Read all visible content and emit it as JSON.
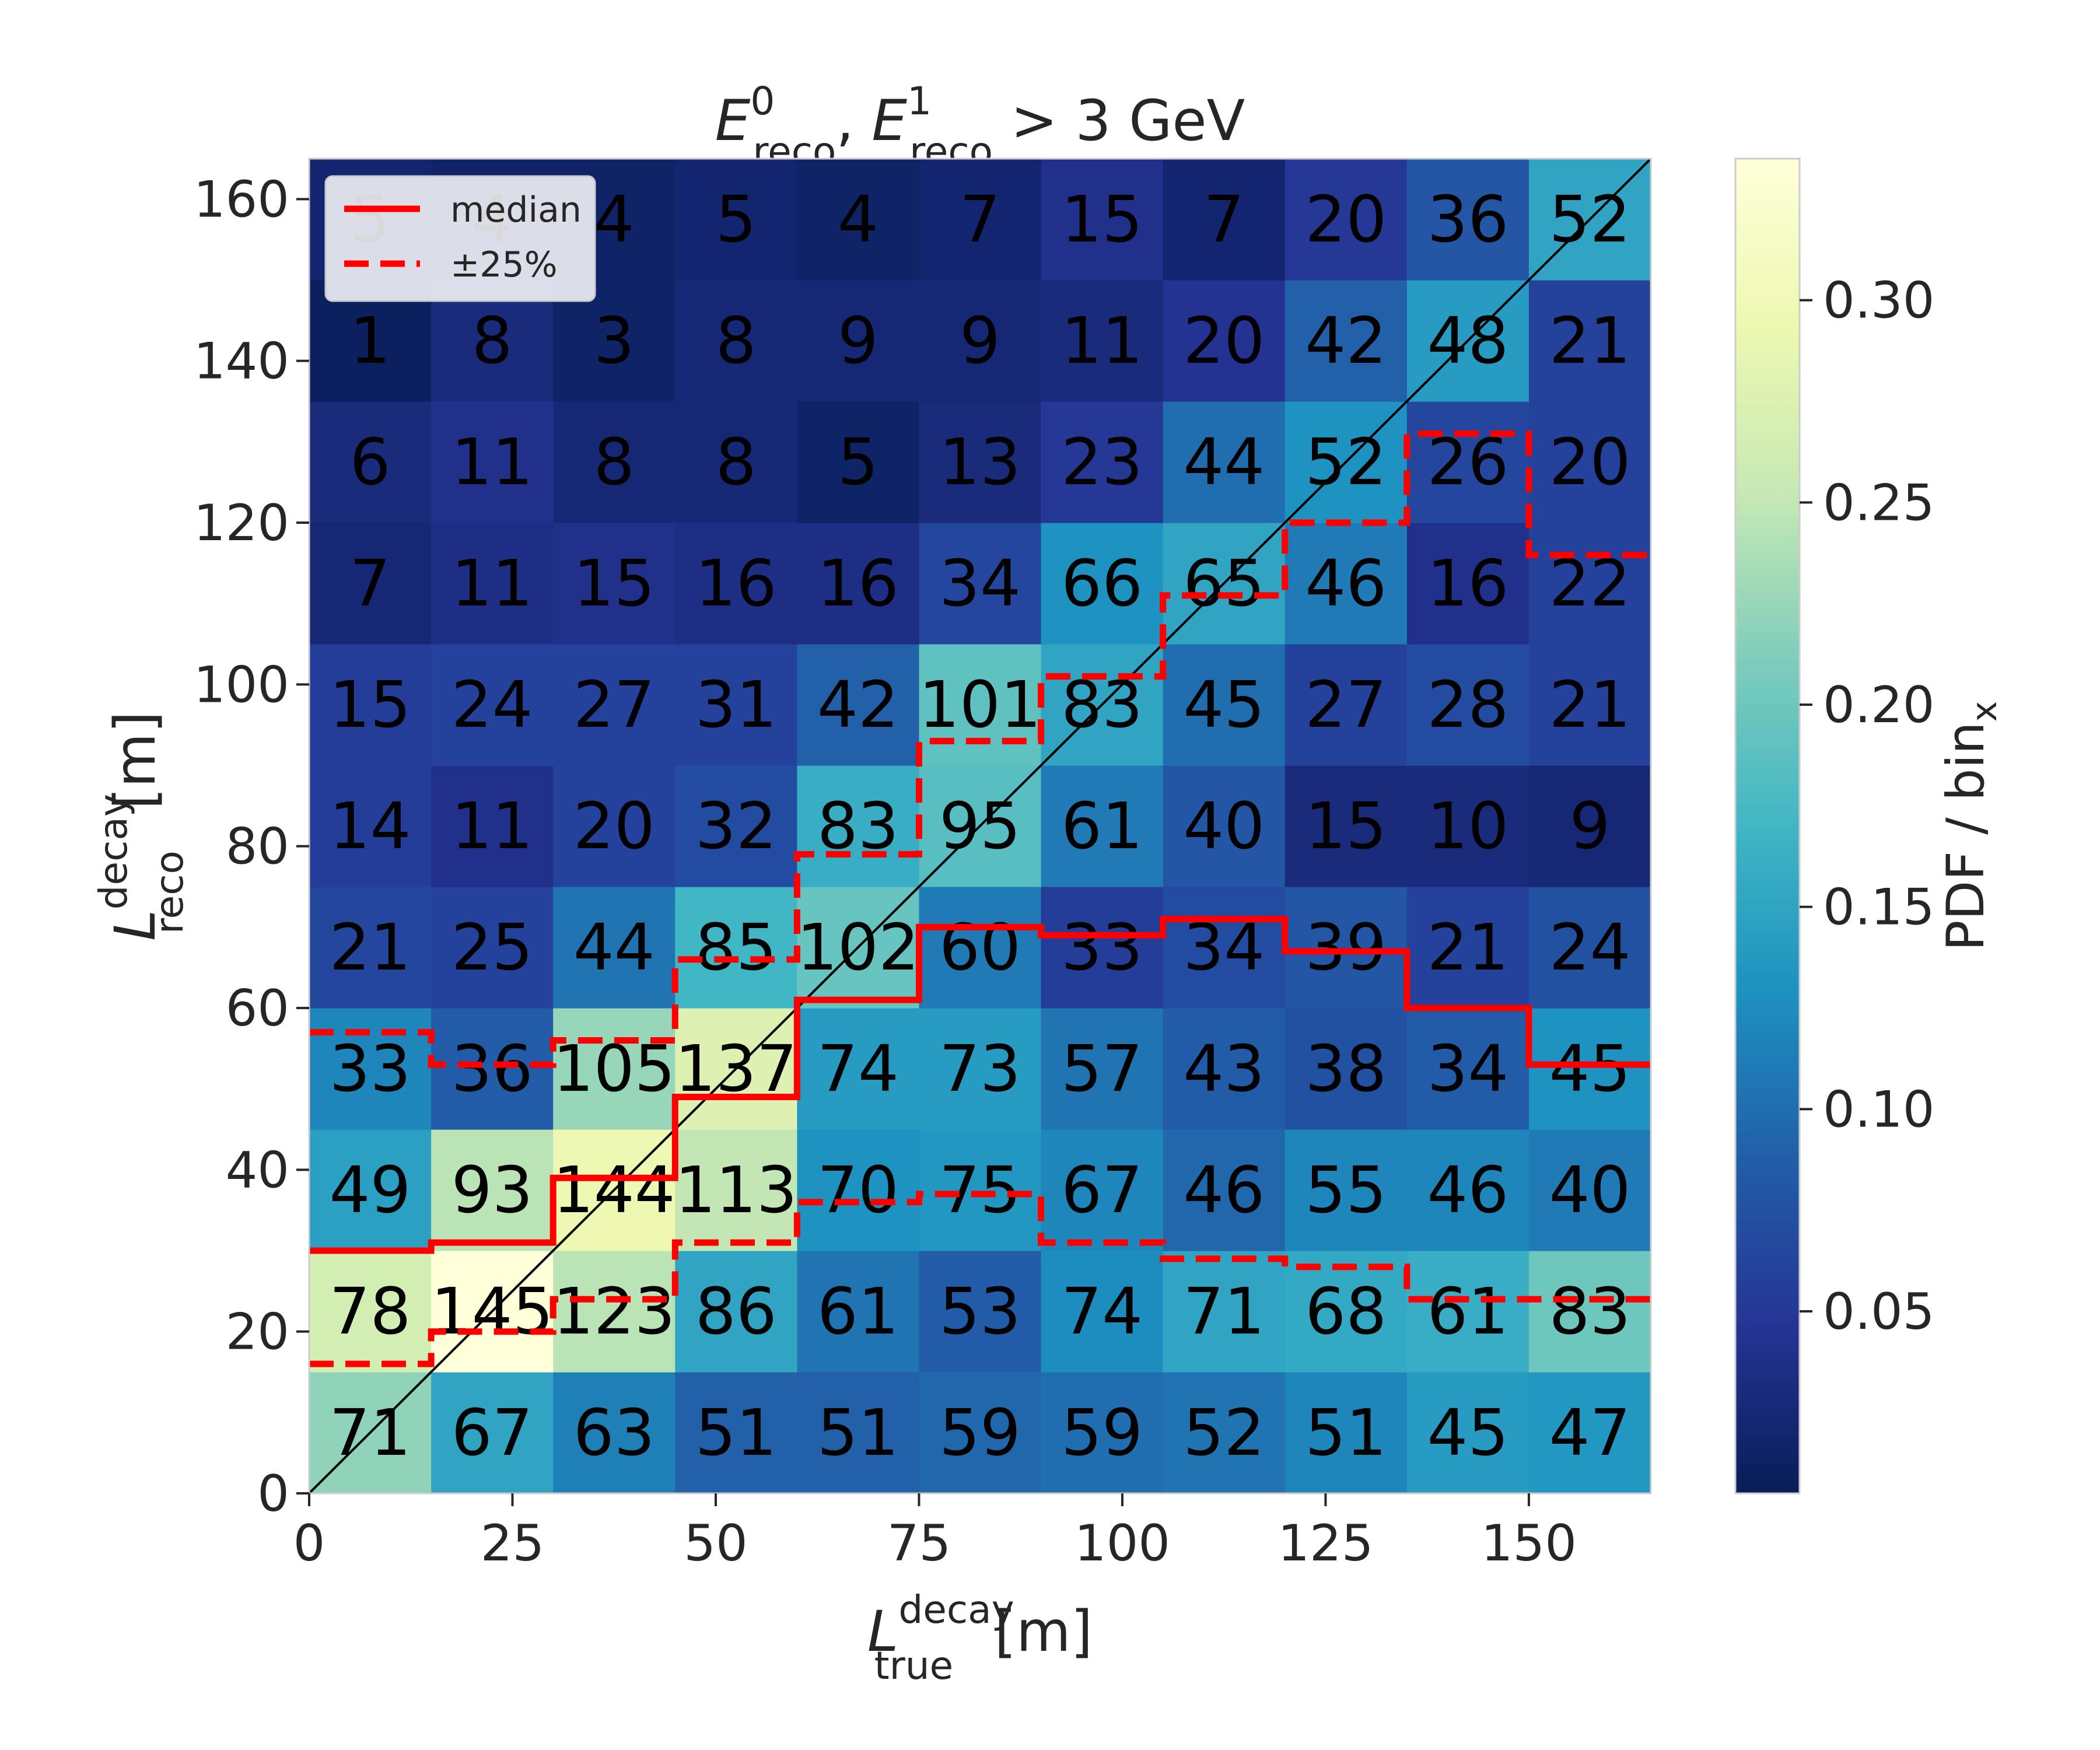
{
  "chart_data": {
    "type": "heatmap",
    "title": {
      "base1": "E",
      "sup1": "0",
      "sub1": "reco",
      "sep": ", ",
      "base2": "E",
      "sup2": "1",
      "sub2": "reco",
      "cond": " > 3 GeV"
    },
    "xlabel": {
      "base": "L",
      "sup": "decay",
      "sub": "true",
      "unit": " [m]"
    },
    "ylabel": {
      "base": "L",
      "sup": "decay",
      "sub": "reco",
      "unit": " [m]"
    },
    "colorbar_label": {
      "text": "PDF / bin",
      "sub": "x"
    },
    "colormap": "YlGnBu",
    "x_edges": [
      0,
      15,
      30,
      45,
      60,
      75,
      90,
      105,
      120,
      135,
      150,
      165
    ],
    "y_edges": [
      0,
      15,
      30,
      45,
      60,
      75,
      90,
      105,
      120,
      135,
      150,
      165
    ],
    "xlim": [
      0,
      165
    ],
    "ylim": [
      0,
      165
    ],
    "x_ticks": [
      0,
      25,
      50,
      75,
      100,
      125,
      150
    ],
    "x_tick_labels": [
      "0",
      "25",
      "50",
      "75",
      "100",
      "125",
      "150"
    ],
    "y_ticks": [
      0,
      20,
      40,
      60,
      80,
      100,
      120,
      140,
      160
    ],
    "y_tick_labels": [
      "0",
      "20",
      "40",
      "60",
      "80",
      "100",
      "120",
      "140",
      "160"
    ],
    "colorbar_range": [
      0.005,
      0.335
    ],
    "colorbar_ticks": [
      0.05,
      0.1,
      0.15,
      0.2,
      0.25,
      0.3
    ],
    "colorbar_tick_labels": [
      "0.05",
      "0.10",
      "0.15",
      "0.20",
      "0.25",
      "0.30"
    ],
    "counts": [
      [
        71,
        67,
        63,
        51,
        51,
        59,
        59,
        52,
        51,
        45,
        47
      ],
      [
        78,
        145,
        123,
        86,
        61,
        53,
        74,
        71,
        68,
        61,
        83
      ],
      [
        49,
        93,
        144,
        113,
        70,
        75,
        67,
        46,
        55,
        46,
        40
      ],
      [
        33,
        36,
        105,
        137,
        74,
        73,
        57,
        43,
        38,
        34,
        45
      ],
      [
        21,
        25,
        44,
        85,
        102,
        60,
        33,
        34,
        39,
        21,
        24
      ],
      [
        14,
        11,
        20,
        32,
        83,
        95,
        61,
        40,
        15,
        10,
        9
      ],
      [
        15,
        24,
        27,
        31,
        42,
        101,
        83,
        45,
        27,
        28,
        21
      ],
      [
        7,
        11,
        15,
        16,
        16,
        34,
        66,
        65,
        46,
        16,
        22
      ],
      [
        6,
        11,
        8,
        8,
        5,
        13,
        23,
        44,
        52,
        26,
        20
      ],
      [
        1,
        8,
        3,
        8,
        9,
        9,
        11,
        20,
        42,
        48,
        21
      ],
      [
        5,
        4,
        4,
        5,
        4,
        7,
        15,
        7,
        20,
        36,
        52
      ]
    ],
    "pdf": [
      [
        0.22,
        0.15,
        0.115,
        0.09,
        0.09,
        0.095,
        0.1,
        0.105,
        0.12,
        0.14,
        0.135
      ],
      [
        0.265,
        0.335,
        0.245,
        0.15,
        0.105,
        0.085,
        0.125,
        0.15,
        0.155,
        0.16,
        0.2
      ],
      [
        0.145,
        0.245,
        0.295,
        0.25,
        0.13,
        0.135,
        0.12,
        0.095,
        0.12,
        0.12,
        0.11
      ],
      [
        0.12,
        0.085,
        0.225,
        0.275,
        0.14,
        0.14,
        0.105,
        0.085,
        0.075,
        0.085,
        0.13
      ],
      [
        0.065,
        0.06,
        0.105,
        0.17,
        0.195,
        0.11,
        0.055,
        0.07,
        0.08,
        0.06,
        0.075
      ],
      [
        0.055,
        0.04,
        0.06,
        0.07,
        0.16,
        0.185,
        0.11,
        0.08,
        0.03,
        0.03,
        0.025
      ],
      [
        0.055,
        0.06,
        0.06,
        0.06,
        0.09,
        0.19,
        0.15,
        0.1,
        0.06,
        0.07,
        0.06
      ],
      [
        0.025,
        0.035,
        0.04,
        0.035,
        0.035,
        0.065,
        0.13,
        0.15,
        0.11,
        0.04,
        0.06
      ],
      [
        0.03,
        0.04,
        0.025,
        0.025,
        0.015,
        0.03,
        0.05,
        0.1,
        0.13,
        0.065,
        0.06
      ],
      [
        0.01,
        0.03,
        0.015,
        0.025,
        0.025,
        0.025,
        0.03,
        0.045,
        0.09,
        0.14,
        0.06
      ],
      [
        0.02,
        0.015,
        0.015,
        0.02,
        0.015,
        0.02,
        0.04,
        0.02,
        0.05,
        0.08,
        0.15
      ]
    ],
    "median": [
      30,
      31,
      39,
      49,
      61,
      70,
      69,
      71,
      67,
      60,
      53
    ],
    "q25": [
      16,
      20,
      24,
      31,
      36,
      37,
      31,
      29,
      28,
      24,
      24
    ],
    "q75": [
      57,
      53,
      56,
      66,
      79,
      93,
      101,
      111,
      120,
      131,
      116
    ],
    "legend": {
      "position": "upper-left",
      "items": [
        "median",
        "±25%"
      ]
    },
    "diagonal": true,
    "grid": false
  }
}
